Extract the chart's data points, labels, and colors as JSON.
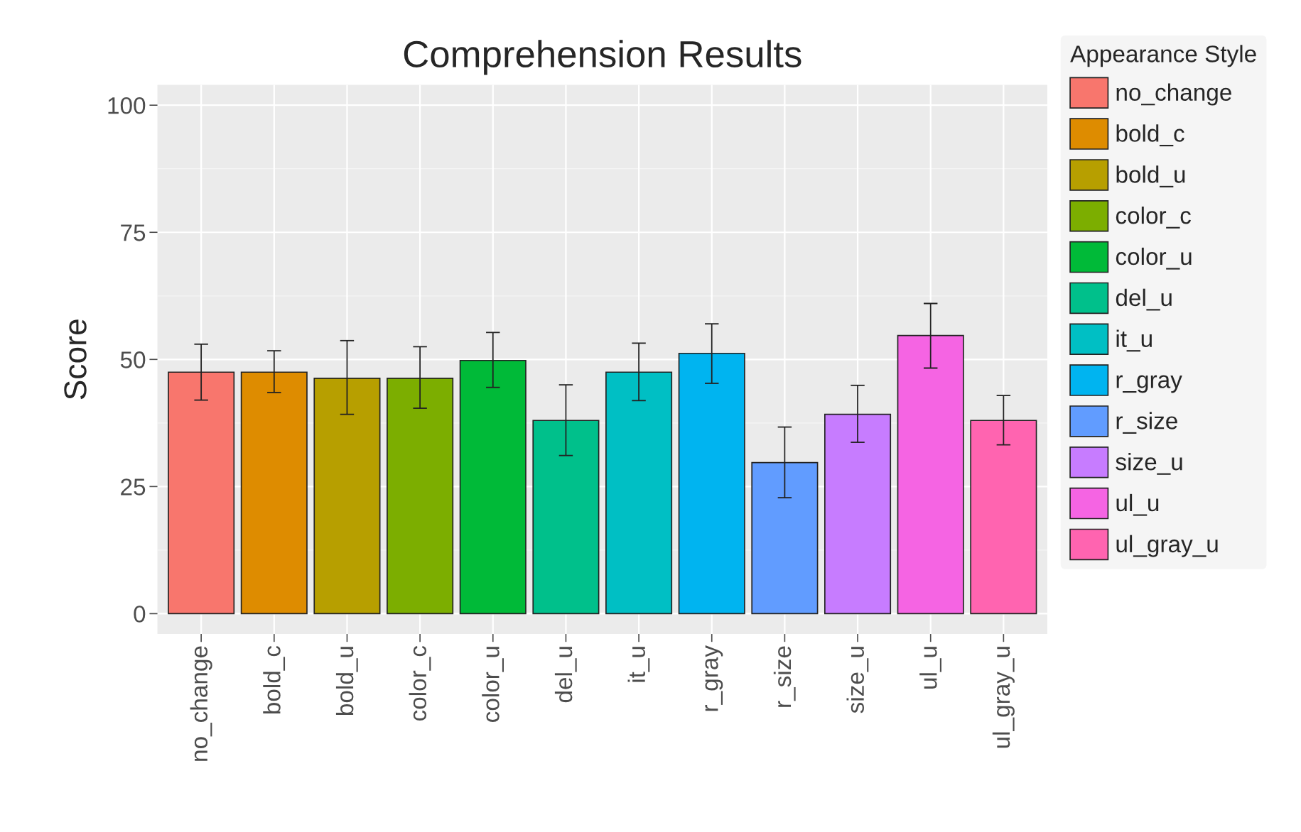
{
  "chart_data": {
    "type": "bar",
    "title": "Comprehension Results",
    "ylabel": "Score",
    "categories": [
      "no_change",
      "bold_c",
      "bold_u",
      "color_c",
      "color_u",
      "del_u",
      "it_u",
      "r_gray",
      "r_size",
      "size_u",
      "ul_u",
      "ul_gray_u"
    ],
    "series": [
      {
        "name": "no_change",
        "color": "#f8766d",
        "values": [
          47.5,
          null,
          null,
          null,
          null,
          null,
          null,
          null,
          null,
          null,
          null,
          null
        ],
        "errors": [
          [
            42.0,
            53.0
          ],
          null,
          null,
          null,
          null,
          null,
          null,
          null,
          null,
          null,
          null,
          null
        ]
      },
      {
        "name": "bold_c",
        "color": "#de8c00",
        "values": [
          null,
          47.5,
          null,
          null,
          null,
          null,
          null,
          null,
          null,
          null,
          null,
          null
        ],
        "errors": [
          null,
          [
            43.5,
            51.7
          ],
          null,
          null,
          null,
          null,
          null,
          null,
          null,
          null,
          null,
          null
        ]
      },
      {
        "name": "bold_u",
        "color": "#b79f00",
        "values": [
          null,
          null,
          46.3,
          null,
          null,
          null,
          null,
          null,
          null,
          null,
          null,
          null
        ],
        "errors": [
          null,
          null,
          [
            39.2,
            53.7
          ],
          null,
          null,
          null,
          null,
          null,
          null,
          null,
          null,
          null
        ]
      },
      {
        "name": "color_c",
        "color": "#7cae00",
        "values": [
          null,
          null,
          null,
          46.3,
          null,
          null,
          null,
          null,
          null,
          null,
          null,
          null
        ],
        "errors": [
          null,
          null,
          null,
          [
            40.4,
            52.5
          ],
          null,
          null,
          null,
          null,
          null,
          null,
          null,
          null
        ]
      },
      {
        "name": "color_u",
        "color": "#00ba38",
        "values": [
          null,
          null,
          null,
          null,
          49.8,
          null,
          null,
          null,
          null,
          null,
          null,
          null
        ],
        "errors": [
          null,
          null,
          null,
          null,
          [
            44.5,
            55.3
          ],
          null,
          null,
          null,
          null,
          null,
          null,
          null
        ]
      },
      {
        "name": "del_u",
        "color": "#00c08b",
        "values": [
          null,
          null,
          null,
          null,
          null,
          38.0,
          null,
          null,
          null,
          null,
          null,
          null
        ],
        "errors": [
          null,
          null,
          null,
          null,
          null,
          [
            31.1,
            45.0
          ],
          null,
          null,
          null,
          null,
          null,
          null
        ]
      },
      {
        "name": "it_u",
        "color": "#00bfc4",
        "values": [
          null,
          null,
          null,
          null,
          null,
          null,
          47.5,
          null,
          null,
          null,
          null,
          null
        ],
        "errors": [
          null,
          null,
          null,
          null,
          null,
          null,
          [
            41.9,
            53.2
          ],
          null,
          null,
          null,
          null,
          null
        ]
      },
      {
        "name": "r_gray",
        "color": "#00b4f0",
        "values": [
          null,
          null,
          null,
          null,
          null,
          null,
          null,
          51.2,
          null,
          null,
          null,
          null
        ],
        "errors": [
          null,
          null,
          null,
          null,
          null,
          null,
          null,
          [
            45.3,
            57.0
          ],
          null,
          null,
          null,
          null
        ]
      },
      {
        "name": "r_size",
        "color": "#619cff",
        "values": [
          null,
          null,
          null,
          null,
          null,
          null,
          null,
          null,
          29.7,
          null,
          null,
          null
        ],
        "errors": [
          null,
          null,
          null,
          null,
          null,
          null,
          null,
          null,
          [
            22.8,
            36.7
          ],
          null,
          null,
          null
        ]
      },
      {
        "name": "size_u",
        "color": "#c77cff",
        "values": [
          null,
          null,
          null,
          null,
          null,
          null,
          null,
          null,
          null,
          39.2,
          null,
          null
        ],
        "errors": [
          null,
          null,
          null,
          null,
          null,
          null,
          null,
          null,
          null,
          [
            33.7,
            44.9
          ],
          null,
          null
        ]
      },
      {
        "name": "ul_u",
        "color": "#f564e3",
        "values": [
          null,
          null,
          null,
          null,
          null,
          null,
          null,
          null,
          null,
          null,
          54.7,
          null
        ],
        "errors": [
          null,
          null,
          null,
          null,
          null,
          null,
          null,
          null,
          null,
          null,
          [
            48.3,
            61.0
          ],
          null
        ]
      },
      {
        "name": "ul_gray_u",
        "color": "#ff64b0",
        "values": [
          null,
          null,
          null,
          null,
          null,
          null,
          null,
          null,
          null,
          null,
          null,
          38.0
        ],
        "errors": [
          null,
          null,
          null,
          null,
          null,
          null,
          null,
          null,
          null,
          null,
          null,
          [
            33.2,
            42.9
          ]
        ]
      }
    ],
    "ylim": [
      -4,
      104
    ],
    "yticks": [
      0,
      25,
      50,
      75,
      100
    ],
    "grid": true,
    "legend": "right",
    "legend_title": "Appearance Style"
  }
}
